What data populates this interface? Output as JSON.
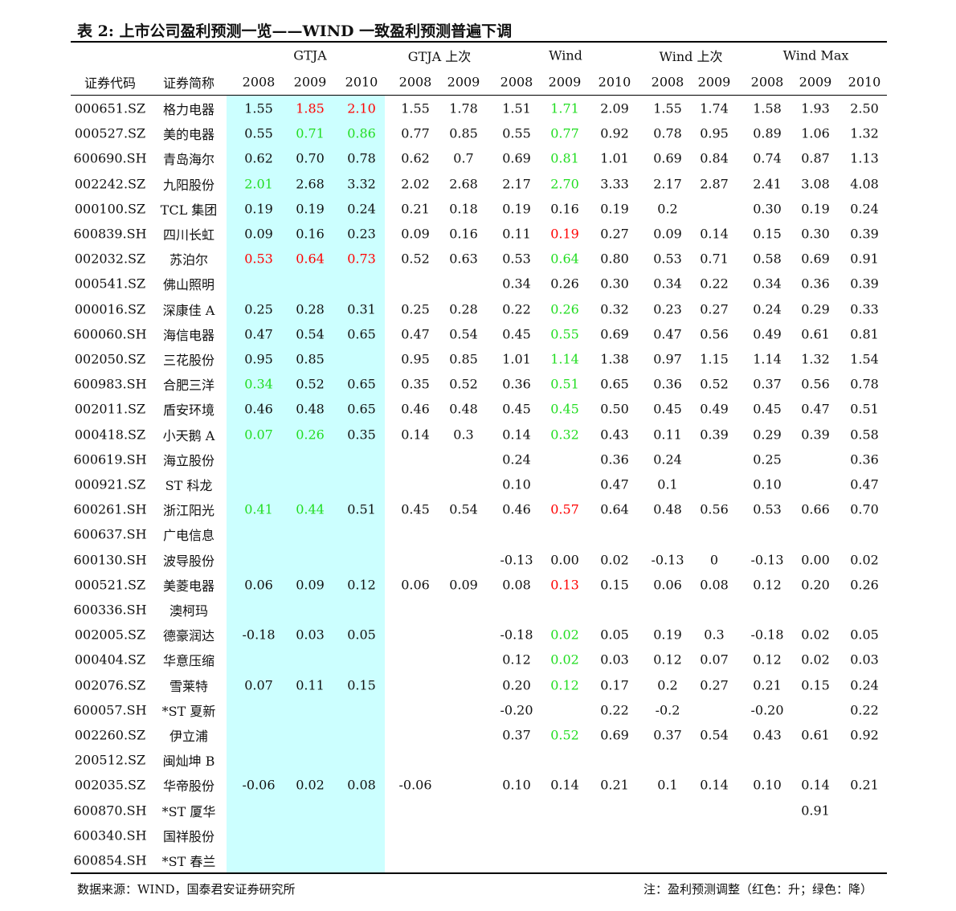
{
  "title": "表 2: 上市公司盈利预测一览——WIND 一致盈利预测普遍下调",
  "table": {
    "columns": [
      "证券代码",
      "证券简称"
    ],
    "groups": [
      {
        "label": "GTJA",
        "years": [
          "2008",
          "2009",
          "2010"
        ],
        "highlight": "#ccffff"
      },
      {
        "label": "GTJA 上次",
        "years": [
          "2008",
          "2009"
        ]
      },
      {
        "label": "Wind",
        "years": [
          "2008",
          "2009",
          "2010"
        ]
      },
      {
        "label": "Wind 上次",
        "years": [
          "2008",
          "2009"
        ]
      },
      {
        "label": "Wind Max",
        "years": [
          "2008",
          "2009",
          "2010"
        ]
      }
    ],
    "colors": {
      "up": "#ff0000",
      "down": "#22dd22"
    },
    "rows": [
      {
        "code": "000651.SZ",
        "name": "格力电器",
        "values": [
          "1.55",
          "1.85",
          "2.10",
          "1.55",
          "1.78",
          "1.51",
          "1.71",
          "2.09",
          "1.55",
          "1.74",
          "1.58",
          "1.93",
          "2.50"
        ],
        "up": [
          1,
          2
        ],
        "down": [
          6
        ]
      },
      {
        "code": "000527.SZ",
        "name": "美的电器",
        "values": [
          "0.55",
          "0.71",
          "0.86",
          "0.77",
          "0.85",
          "0.55",
          "0.77",
          "0.92",
          "0.78",
          "0.95",
          "0.89",
          "1.06",
          "1.32"
        ],
        "down": [
          1,
          2,
          6
        ]
      },
      {
        "code": "600690.SH",
        "name": "青岛海尔",
        "values": [
          "0.62",
          "0.70",
          "0.78",
          "0.62",
          "0.7",
          "0.69",
          "0.81",
          "1.01",
          "0.69",
          "0.84",
          "0.74",
          "0.87",
          "1.13"
        ],
        "down": [
          6
        ]
      },
      {
        "code": "002242.SZ",
        "name": "九阳股份",
        "values": [
          "2.01",
          "2.68",
          "3.32",
          "2.02",
          "2.68",
          "2.17",
          "2.70",
          "3.33",
          "2.17",
          "2.87",
          "2.41",
          "3.08",
          "4.08"
        ],
        "down": [
          0,
          6
        ]
      },
      {
        "code": "000100.SZ",
        "name": "TCL 集团",
        "values": [
          "0.19",
          "0.19",
          "0.24",
          "0.21",
          "0.18",
          "0.19",
          "0.16",
          "0.19",
          "0.2",
          null,
          "0.30",
          "0.19",
          "0.24"
        ]
      },
      {
        "code": "600839.SH",
        "name": "四川长虹",
        "values": [
          "0.09",
          "0.16",
          "0.23",
          "0.09",
          "0.16",
          "0.11",
          "0.19",
          "0.27",
          "0.09",
          "0.14",
          "0.15",
          "0.30",
          "0.39"
        ],
        "up": [
          6
        ]
      },
      {
        "code": "002032.SZ",
        "name": "苏泊尔",
        "values": [
          "0.53",
          "0.64",
          "0.73",
          "0.52",
          "0.63",
          "0.53",
          "0.64",
          "0.80",
          "0.53",
          "0.71",
          "0.58",
          "0.69",
          "0.91"
        ],
        "up": [
          0,
          1,
          2
        ],
        "down": [
          6
        ]
      },
      {
        "code": "000541.SZ",
        "name": "佛山照明",
        "values": [
          null,
          null,
          null,
          null,
          null,
          "0.34",
          "0.26",
          "0.30",
          "0.34",
          "0.22",
          "0.34",
          "0.36",
          "0.39"
        ]
      },
      {
        "code": "000016.SZ",
        "name": "深康佳 A",
        "values": [
          "0.25",
          "0.28",
          "0.31",
          "0.25",
          "0.28",
          "0.22",
          "0.26",
          "0.32",
          "0.23",
          "0.27",
          "0.24",
          "0.29",
          "0.33"
        ],
        "down": [
          6
        ]
      },
      {
        "code": "600060.SH",
        "name": "海信电器",
        "values": [
          "0.47",
          "0.54",
          "0.65",
          "0.47",
          "0.54",
          "0.45",
          "0.55",
          "0.69",
          "0.47",
          "0.56",
          "0.49",
          "0.61",
          "0.81"
        ],
        "down": [
          6
        ]
      },
      {
        "code": "002050.SZ",
        "name": "三花股份",
        "values": [
          "0.95",
          "0.85",
          null,
          "0.95",
          "0.85",
          "1.01",
          "1.14",
          "1.38",
          "0.97",
          "1.15",
          "1.14",
          "1.32",
          "1.54"
        ],
        "down": [
          6
        ]
      },
      {
        "code": "600983.SH",
        "name": "合肥三洋",
        "values": [
          "0.34",
          "0.52",
          "0.65",
          "0.35",
          "0.52",
          "0.36",
          "0.51",
          "0.65",
          "0.36",
          "0.52",
          "0.37",
          "0.56",
          "0.78"
        ],
        "down": [
          0,
          6
        ]
      },
      {
        "code": "002011.SZ",
        "name": "盾安环境",
        "values": [
          "0.46",
          "0.48",
          "0.65",
          "0.46",
          "0.48",
          "0.45",
          "0.45",
          "0.50",
          "0.45",
          "0.49",
          "0.45",
          "0.47",
          "0.51"
        ],
        "down": [
          6
        ]
      },
      {
        "code": "000418.SZ",
        "name": "小天鹅 A",
        "values": [
          "0.07",
          "0.26",
          "0.35",
          "0.14",
          "0.3",
          "0.14",
          "0.32",
          "0.43",
          "0.11",
          "0.39",
          "0.29",
          "0.39",
          "0.58"
        ],
        "down": [
          0,
          1,
          6
        ]
      },
      {
        "code": "600619.SH",
        "name": "海立股份",
        "values": [
          null,
          null,
          null,
          null,
          null,
          "0.24",
          null,
          "0.36",
          "0.24",
          null,
          "0.25",
          null,
          "0.36"
        ]
      },
      {
        "code": "000921.SZ",
        "name": "ST 科龙",
        "values": [
          null,
          null,
          null,
          null,
          null,
          "0.10",
          null,
          "0.47",
          "0.1",
          null,
          "0.10",
          null,
          "0.47"
        ]
      },
      {
        "code": "600261.SH",
        "name": "浙江阳光",
        "values": [
          "0.41",
          "0.44",
          "0.51",
          "0.45",
          "0.54",
          "0.46",
          "0.57",
          "0.64",
          "0.48",
          "0.56",
          "0.53",
          "0.66",
          "0.70"
        ],
        "up": [
          6
        ],
        "down": [
          0,
          1
        ]
      },
      {
        "code": "600637.SH",
        "name": "广电信息",
        "values": [
          null,
          null,
          null,
          null,
          null,
          null,
          null,
          null,
          null,
          null,
          null,
          null,
          null
        ]
      },
      {
        "code": "600130.SH",
        "name": "波导股份",
        "values": [
          null,
          null,
          null,
          null,
          null,
          "-0.13",
          "0.00",
          "0.02",
          "-0.13",
          "0",
          "-0.13",
          "0.00",
          "0.02"
        ]
      },
      {
        "code": "000521.SZ",
        "name": "美菱电器",
        "values": [
          "0.06",
          "0.09",
          "0.12",
          "0.06",
          "0.09",
          "0.08",
          "0.13",
          "0.15",
          "0.06",
          "0.08",
          "0.12",
          "0.20",
          "0.26"
        ],
        "up": [
          6
        ]
      },
      {
        "code": "600336.SH",
        "name": "澳柯玛",
        "values": [
          null,
          null,
          null,
          null,
          null,
          null,
          null,
          null,
          null,
          null,
          null,
          null,
          null
        ]
      },
      {
        "code": "002005.SZ",
        "name": "德豪润达",
        "values": [
          "-0.18",
          "0.03",
          "0.05",
          null,
          null,
          "-0.18",
          "0.02",
          "0.05",
          "0.19",
          "0.3",
          "-0.18",
          "0.02",
          "0.05"
        ],
        "down": [
          6
        ]
      },
      {
        "code": "000404.SZ",
        "name": "华意压缩",
        "values": [
          null,
          null,
          null,
          null,
          null,
          "0.12",
          "0.02",
          "0.03",
          "0.12",
          "0.07",
          "0.12",
          "0.02",
          "0.03"
        ],
        "down": [
          6
        ]
      },
      {
        "code": "002076.SZ",
        "name": "雪莱特",
        "values": [
          "0.07",
          "0.11",
          "0.15",
          null,
          null,
          "0.20",
          "0.12",
          "0.17",
          "0.2",
          "0.27",
          "0.21",
          "0.15",
          "0.24"
        ],
        "down": [
          6
        ]
      },
      {
        "code": "600057.SH",
        "name": "*ST 夏新",
        "values": [
          null,
          null,
          null,
          null,
          null,
          "-0.20",
          null,
          "0.22",
          "-0.2",
          null,
          "-0.20",
          null,
          "0.22"
        ]
      },
      {
        "code": "002260.SZ",
        "name": "伊立浦",
        "values": [
          null,
          null,
          null,
          null,
          null,
          "0.37",
          "0.52",
          "0.69",
          "0.37",
          "0.54",
          "0.43",
          "0.61",
          "0.92"
        ],
        "down": [
          6
        ]
      },
      {
        "code": "200512.SZ",
        "name": "闽灿坤 B",
        "values": [
          null,
          null,
          null,
          null,
          null,
          null,
          null,
          null,
          null,
          null,
          null,
          null,
          null
        ]
      },
      {
        "code": "002035.SZ",
        "name": "华帝股份",
        "values": [
          "-0.06",
          "0.02",
          "0.08",
          "-0.06",
          null,
          "0.10",
          "0.14",
          "0.21",
          "0.1",
          "0.14",
          "0.10",
          "0.14",
          "0.21"
        ]
      },
      {
        "code": "600870.SH",
        "name": "*ST 厦华",
        "values": [
          null,
          null,
          null,
          null,
          null,
          null,
          null,
          null,
          null,
          null,
          null,
          "0.91",
          null
        ]
      },
      {
        "code": "600340.SH",
        "name": "国祥股份",
        "values": [
          null,
          null,
          null,
          null,
          null,
          null,
          null,
          null,
          null,
          null,
          null,
          null,
          null
        ]
      },
      {
        "code": "600854.SH",
        "name": "*ST 春兰",
        "values": [
          null,
          null,
          null,
          null,
          null,
          null,
          null,
          null,
          null,
          null,
          null,
          null,
          null
        ]
      }
    ]
  },
  "footer": {
    "source": "数据来源：WIND，国泰君安证券研究所",
    "note": "注：盈利预测调整（红色：升；绿色：降）"
  }
}
